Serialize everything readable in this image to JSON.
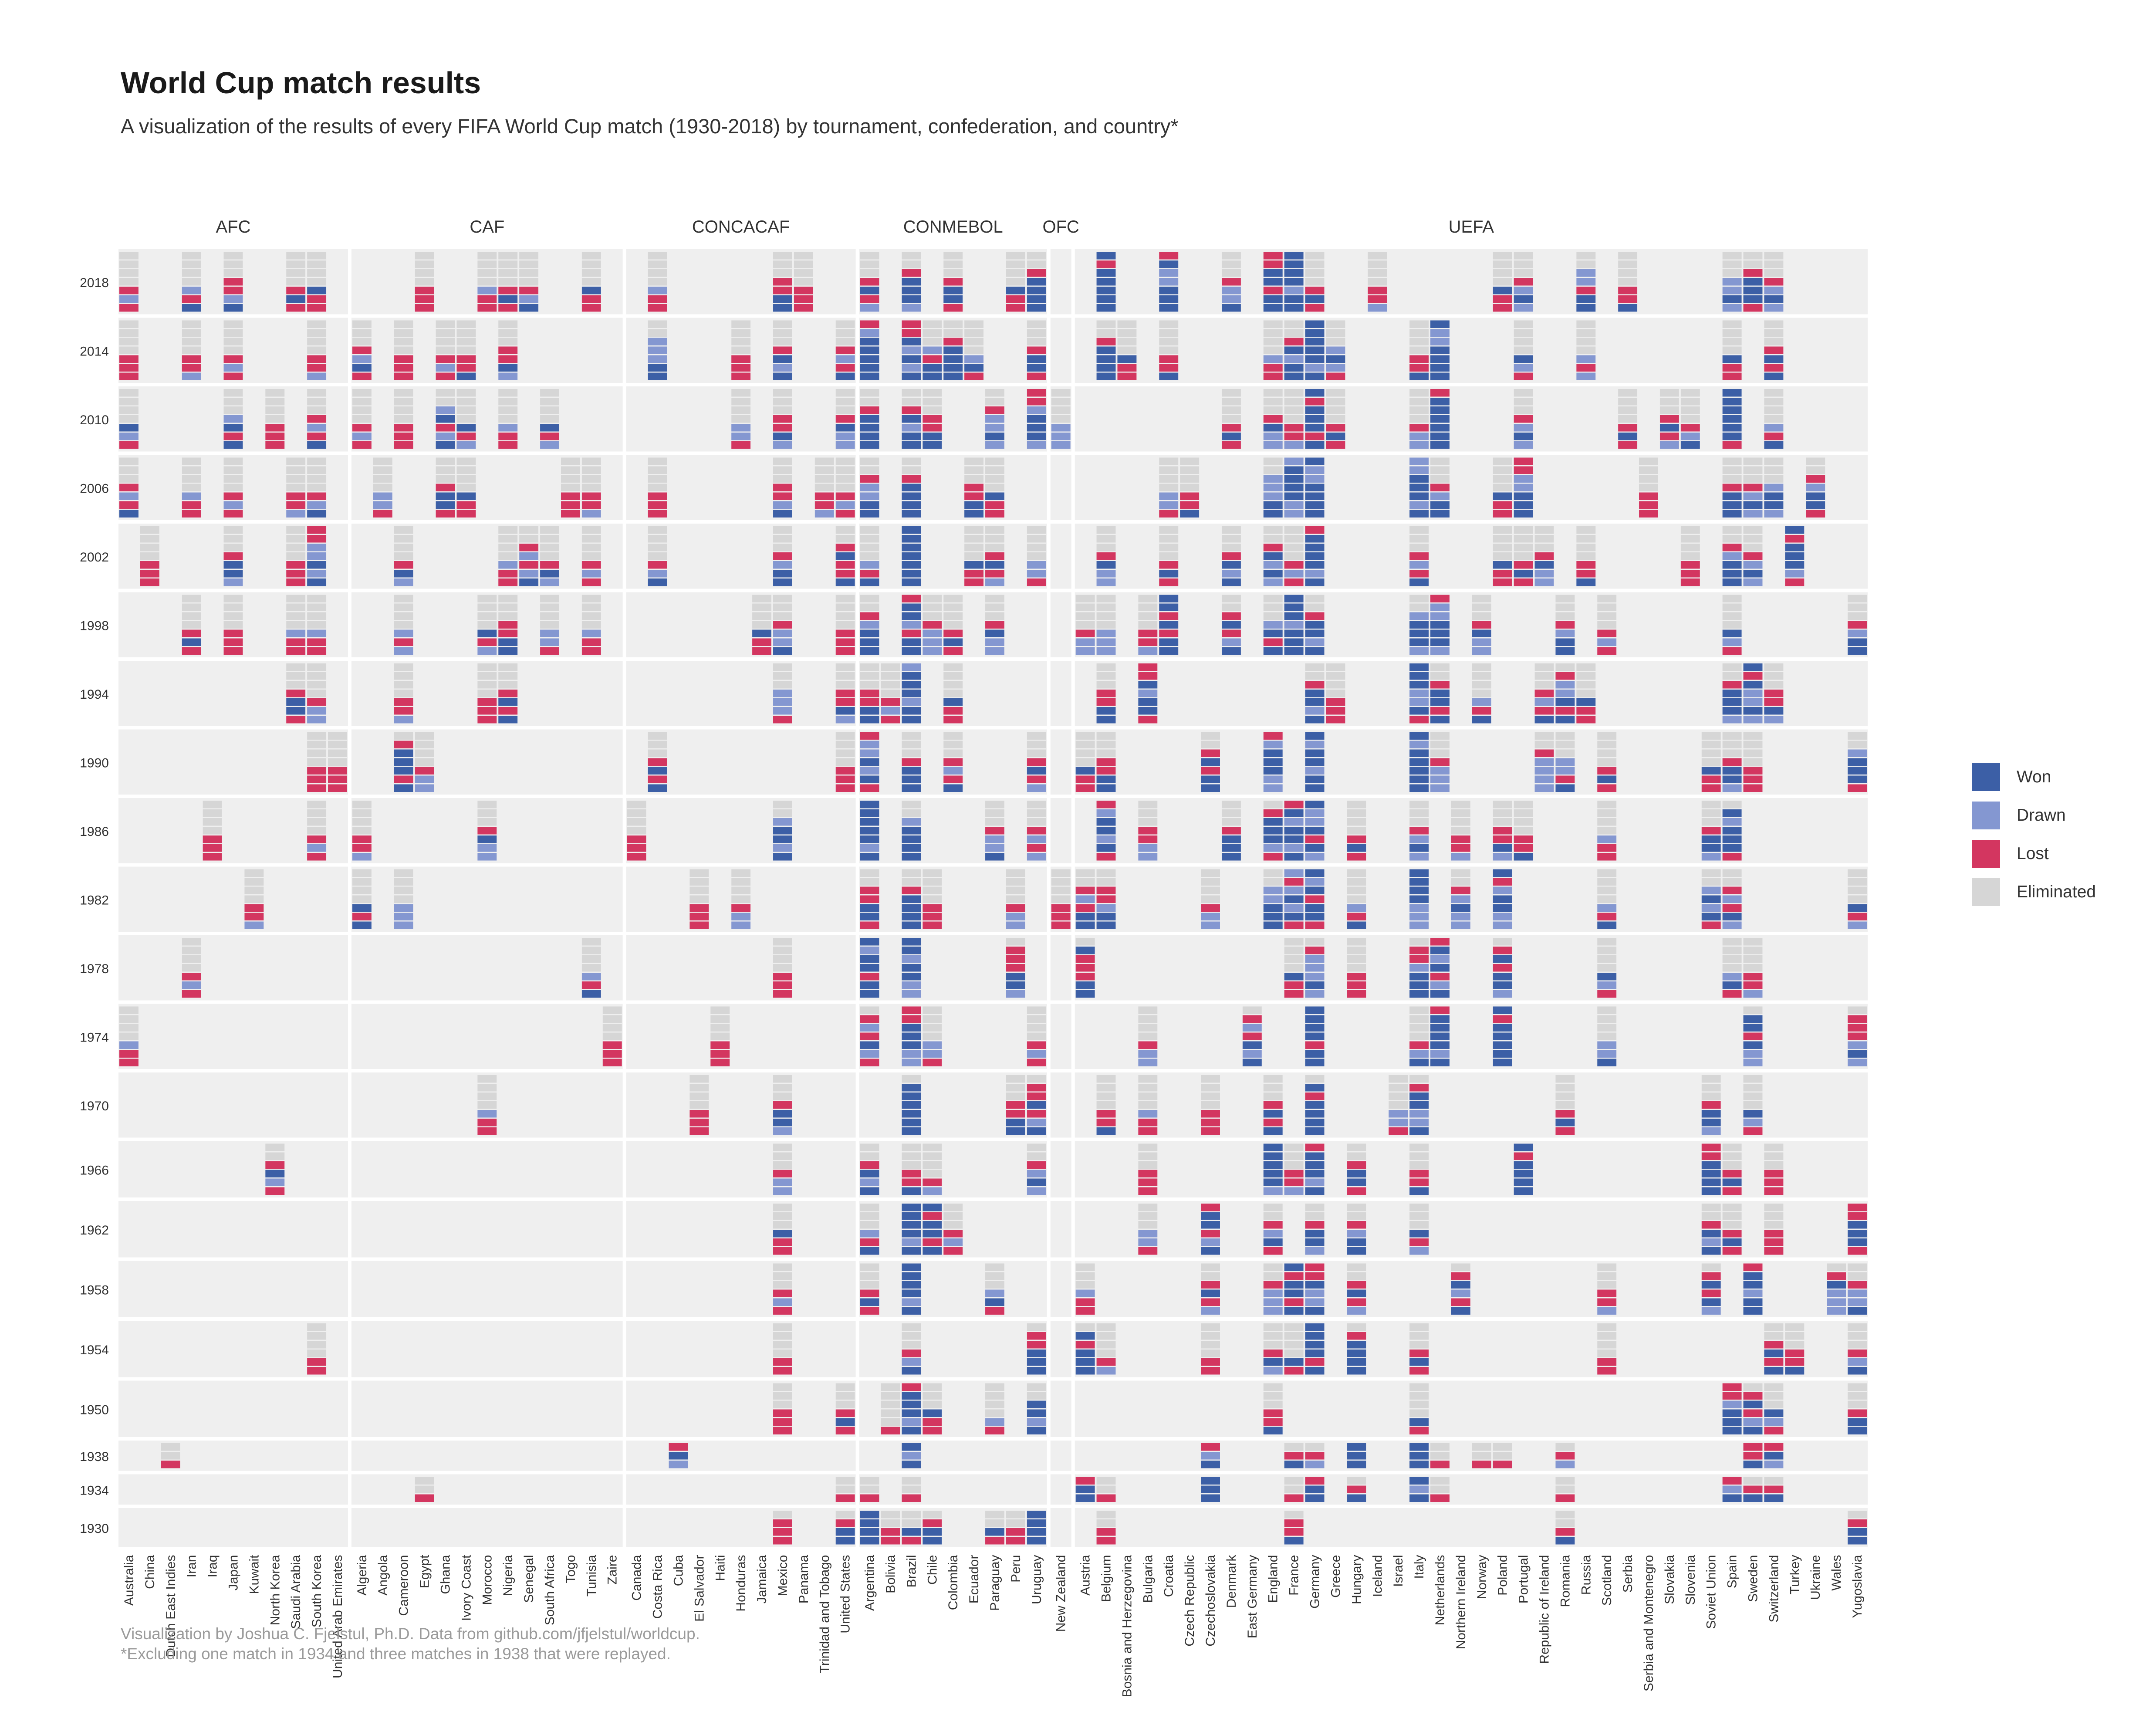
{
  "title": "World Cup match results",
  "subtitle": "A visualization of the results of every FIFA World Cup match (1930-2018) by tournament, confederation, and country*",
  "caption_line1": "Visualization by Joshua C. Fjelstul, Ph.D. Data from github.com/jfjelstul/worldcup.",
  "caption_line2": "*Excluding one match in 1934 and three matches in 1938 that were replayed.",
  "colors": {
    "won": "#3c5fa6",
    "drawn": "#8497d1",
    "lost": "#d33660",
    "eliminated": "#d6d6d6",
    "panel": "#efefef"
  },
  "legend": [
    {
      "key": "won",
      "label": "Won"
    },
    {
      "key": "drawn",
      "label": "Drawn"
    },
    {
      "key": "lost",
      "label": "Lost"
    },
    {
      "key": "eliminated",
      "label": "Eliminated"
    }
  ],
  "chart_data": {
    "type": "heatmap",
    "title": "World Cup match results",
    "facets_note": "Columns are grouped by confederation; each cell is a stack of match tiles (bottom = first match).",
    "years": [
      "2018",
      "2014",
      "2010",
      "2006",
      "2002",
      "1998",
      "1994",
      "1990",
      "1986",
      "1982",
      "1978",
      "1974",
      "1970",
      "1966",
      "1962",
      "1958",
      "1954",
      "1950",
      "1938",
      "1934",
      "1930"
    ],
    "slots": [
      7,
      7,
      7,
      7,
      7,
      7,
      7,
      7,
      7,
      7,
      7,
      7,
      7,
      6,
      6,
      6,
      6,
      6,
      3,
      3,
      4
    ],
    "confederations": [
      {
        "name": "AFC",
        "countries": [
          "Australia",
          "China",
          "Dutch East Indies",
          "Iran",
          "Iraq",
          "Japan",
          "Kuwait",
          "North Korea",
          "Saudi Arabia",
          "South Korea",
          "United Arab Emirates"
        ]
      },
      {
        "name": "CAF",
        "countries": [
          "Algeria",
          "Angola",
          "Cameroon",
          "Egypt",
          "Ghana",
          "Ivory Coast",
          "Morocco",
          "Nigeria",
          "Senegal",
          "South Africa",
          "Togo",
          "Tunisia",
          "Zaire"
        ]
      },
      {
        "name": "CONCACAF",
        "countries": [
          "Canada",
          "Costa Rica",
          "Cuba",
          "El Salvador",
          "Haiti",
          "Honduras",
          "Jamaica",
          "Mexico",
          "Panama",
          "Trinidad and Tobago",
          "United States"
        ]
      },
      {
        "name": "CONMEBOL",
        "countries": [
          "Argentina",
          "Bolivia",
          "Brazil",
          "Chile",
          "Colombia",
          "Ecuador",
          "Paraguay",
          "Peru",
          "Uruguay"
        ]
      },
      {
        "name": "OFC",
        "countries": [
          "New Zealand"
        ]
      },
      {
        "name": "UEFA",
        "countries": [
          "Austria",
          "Belgium",
          "Bosnia and Herzegovina",
          "Bulgaria",
          "Croatia",
          "Czech Republic",
          "Czechoslovakia",
          "Denmark",
          "East Germany",
          "England",
          "France",
          "Germany",
          "Greece",
          "Hungary",
          "Iceland",
          "Israel",
          "Italy",
          "Netherlands",
          "Northern Ireland",
          "Norway",
          "Poland",
          "Portugal",
          "Republic of Ireland",
          "Romania",
          "Russia",
          "Scotland",
          "Serbia",
          "Serbia and Montenegro",
          "Slovakia",
          "Slovenia",
          "Soviet Union",
          "Spain",
          "Sweden",
          "Switzerland",
          "Turkey",
          "Ukraine",
          "Wales",
          "Yugoslavia"
        ]
      }
    ],
    "results": {
      "2018": {
        "Australia": "LDL",
        "Iran": "WLD",
        "Japan": "WDLL",
        "Saudi Arabia": "LWL",
        "South Korea": "LLW",
        "Egypt": "LLL",
        "Morocco": "LLD",
        "Nigeria": "LWL",
        "Senegal": "WDL",
        "Tunisia": "LLW",
        "Costa Rica": "LLD",
        "Mexico": "WWLL",
        "Panama": "LLL",
        "Argentina": "DLWL",
        "Brazil": "DWWWL",
        "Colombia": "LWWL",
        "Peru": "LLW",
        "Uruguay": "WWWWL",
        "Belgium": "WWWWWLW",
        "Croatia": "WWWDDWL",
        "Denmark": "WDDL",
        "England": "WWLWWLL",
        "France": "WWDWWWW",
        "Germany": "LWL",
        "Iceland": "DLL",
        "Poland": "LLW",
        "Portugal": "DWDL",
        "Russia": "WWLDD",
        "Serbia": "WLL",
        "Spain": "DWDD",
        "Sweden": "LWWWL",
        "Switzerland": "DWDL"
      },
      "2014": {
        "Australia": "LLL",
        "Iran": "DLL",
        "Japan": "LDL",
        "South Korea": "DLL",
        "Algeria": "LWDL",
        "Cameroon": "LLL",
        "Ghana": "LDL",
        "Ivory Coast": "WLL",
        "Nigeria": "DWLL",
        "Costa Rica": "WWDDD",
        "Honduras": "LLL",
        "Mexico": "WDWL",
        "United States": "WLDL",
        "Argentina": "WWWWWDL",
        "Brazil": "WDWDWLL",
        "Chile": "WWLD",
        "Colombia": "WWWWL",
        "Ecuador": "LWD",
        "Uruguay": "LWWL",
        "Belgium": "WWWWL",
        "Bosnia and Herzegovina": "LLW",
        "Croatia": "WLL",
        "England": "LLD",
        "France": "WWDWL",
        "Germany": "WDWWWWW",
        "Greece": "LDWD",
        "Italy": "WLL",
        "Netherlands": "WWWWDDW",
        "Portugal": "LDW",
        "Russia": "DLD",
        "Spain": "LLW",
        "Switzerland": "WLWL"
      },
      "2010": {
        "Australia": "LDW",
        "Japan": "WLWD",
        "North Korea": "LLL",
        "South Korea": "WLDL",
        "Algeria": "LDL",
        "Cameroon": "LLL",
        "Ghana": "WDLWD",
        "Ivory Coast": "DLW",
        "Nigeria": "LLD",
        "South Africa": "DLW",
        "Honduras": "LDD",
        "Mexico": "DWLL",
        "United States": "DDWL",
        "Argentina": "WWWWL",
        "Brazil": "WWDWL",
        "Chile": "WWLL",
        "Paraguay": "DWDDL",
        "Uruguay": "DWWWDLL",
        "New Zealand": "DDD",
        "Denmark": "LWL",
        "England": "DDWL",
        "France": "DLL",
        "Germany": "WLWWWLW",
        "Greece": "LWL",
        "Italy": "DDL",
        "Netherlands": "WWWWWWL",
        "Portugal": "DWDL",
        "Serbia": "LWL",
        "Slovakia": "DLWL",
        "Slovenia": "WDL",
        "Spain": "LWWWWWW",
        "Switzerland": "WLD"
      },
      "2006": {
        "Australia": "WLDL",
        "Iran": "LLD",
        "Japan": "LDL",
        "Saudi Arabia": "DLL",
        "South Korea": "WDL",
        "Angola": "LDD",
        "Ghana": "LWWL",
        "Ivory Coast": "LLW",
        "Togo": "LLL",
        "Tunisia": "DLL",
        "Costa Rica": "LLL",
        "Mexico": "WDLL",
        "Trinidad and Tobago": "DLL",
        "United States": "LDL",
        "Argentina": "WWDDL",
        "Brazil": "WWWWL",
        "Ecuador": "WWLL",
        "Paraguay": "LLW",
        "Croatia": "LDD",
        "Czech Republic": "WLL",
        "England": "WWDDD",
        "France": "DDWWWWD",
        "Germany": "WWWWDDW",
        "Italy": "WDWWWDD",
        "Netherlands": "WWDL",
        "Poland": "LLW",
        "Portugal": "WWWDDLL",
        "Serbia and Montenegro": "LLL",
        "Spain": "WWWL",
        "Sweden": "DWDL",
        "Switzerland": "DWWD",
        "Ukraine": "LWWDL"
      },
      "2002": {
        "China": "LLL",
        "Japan": "DWWL",
        "Saudi Arabia": "LLL",
        "South Korea": "WDWDDLL",
        "Cameroon": "DWL",
        "Nigeria": "LLD",
        "Senegal": "WDLDL",
        "South Africa": "DWL",
        "Tunisia": "LDL",
        "Costa Rica": "WDL",
        "Mexico": "WWDL",
        "United States": "WLLWL",
        "Argentina": "WLD",
        "Brazil": "WWWWWWW",
        "Ecuador": "LLW",
        "Paraguay": "DLWL",
        "Uruguay": "LDD",
        "Belgium": "DDWL",
        "Croatia": "LWL",
        "Denmark": "WDWL",
        "England": "DWDWL",
        "France": "LDL",
        "Germany": "WDWWWWL",
        "Italy": "WLDL",
        "Poland": "LLW",
        "Portugal": "LWL",
        "Republic of Ireland": "DDWL",
        "Russia": "WLL",
        "Slovenia": "LLL",
        "Spain": "WWWDL",
        "Sweden": "DWDL",
        "Turkey": "LDWWWLW"
      },
      "1998": {
        "Iran": "LWL",
        "Japan": "LLL",
        "Saudi Arabia": "LLD",
        "South Korea": "LLD",
        "Cameroon": "DLD",
        "Morocco": "DLW",
        "Nigeria": "WWLL",
        "South Africa": "LDD",
        "Tunisia": "LLD",
        "Jamaica": "LLW",
        "Mexico": "WDDL",
        "United States": "LLL",
        "Argentina": "WWWDL",
        "Brazil": "WWLDWWL",
        "Chile": "DDDL",
        "Colombia": "LWL",
        "Paraguay": "DDWL",
        "Austria": "DDL",
        "Belgium": "DDD",
        "Bulgaria": "DLL",
        "Croatia": "WWLWLWW",
        "Denmark": "WDLWL",
        "England": "WLWD",
        "France": "WWWDWWW",
        "Germany": "WDWWL",
        "Italy": "DWWWD",
        "Netherlands": "DWWWDDL",
        "Norway": "DDWL",
        "Romania": "WWDL",
        "Scotland": "LDL",
        "Spain": "LDW",
        "Yugoslavia": "WWDL"
      },
      "1994": {
        "Saudi Arabia": "LWWL",
        "South Korea": "DDL",
        "Cameroon": "DLL",
        "Morocco": "LLL",
        "Nigeria": "WLWL",
        "Mexico": "LDDD",
        "United States": "DWLL",
        "Argentina": "WWLL",
        "Bolivia": "LDL",
        "Brazil": "WWDWWWDD",
        "Colombia": "LLW",
        "Belgium": "WWLL",
        "Bulgaria": "LWWDWLL",
        "Germany": "WDWWL",
        "Greece": "LLL",
        "Italy": "LWDDWWWD",
        "Netherlands": "WLWWL",
        "Norway": "WLD",
        "Republic of Ireland": "WLDL",
        "Romania": "WLWDDL",
        "Russia": "LLW",
        "Spain": "DWWWL",
        "Sweden": "DWDDWLW",
        "Switzerland": "DWLL"
      },
      "1990": {
        "South Korea": "LLL",
        "United Arab Emirates": "LLL",
        "Cameroon": "WLWWWL",
        "Egypt": "DDL",
        "Costa Rica": "WLWL",
        "United States": "LLL",
        "Argentina": "LWDWDDL",
        "Brazil": "WWWL",
        "Colombia": "WLDL",
        "Uruguay": "DLWL",
        "Austria": "LLW",
        "Belgium": "WWLL",
        "Czechoslovakia": "WWLWL",
        "England": "DDWWWDL",
        "Germany": "WWDWWDWW",
        "Italy": "WWWWWDW",
        "Netherlands": "DDDL",
        "Republic of Ireland": "DDDDL",
        "Romania": "WLDD",
        "Scotland": "LWL",
        "Soviet Union": "LLW",
        "Spain": "DWWL",
        "Sweden": "LLL",
        "Yugoslavia": "LWWWD"
      },
      "1986": {
        "Iraq": "LLL",
        "South Korea": "LDL",
        "Algeria": "DLL",
        "Morocco": "DDWL",
        "Canada": "LLL",
        "Mexico": "WDWWD",
        "Argentina": "WDWWWWW",
        "Brazil": "WWWWD",
        "Paraguay": "WDDL",
        "Uruguay": "DLDL",
        "Belgium": "LWDWWDLL",
        "Bulgaria": "DDLL",
        "Denmark": "WWWL",
        "England": "LDWWWL",
        "France": "WDWWDWLW",
        "Germany": "DWLWDDWL",
        "Hungary": "LWL",
        "Italy": "DWDL",
        "Northern Ireland": "DLL",
        "Poland": "DWLL",
        "Portugal": "WLL",
        "Scotland": "LLD",
        "Soviet Union": "DWWL",
        "Spain": "LWWWDW"
      },
      "1982": {
        "Kuwait": "DLL",
        "Algeria": "WLW",
        "Cameroon": "DDD",
        "El Salvador": "LLL",
        "Honduras": "DDL",
        "Argentina": "LWWLL",
        "Brazil": "WWWWL",
        "Chile": "LLL",
        "Peru": "DDL",
        "New Zealand": "LLL",
        "Austria": "WWLDL",
        "Belgium": "WWDLL",
        "Czechoslovakia": "DDL",
        "England": "WWWDD",
        "France": "LWDWDLDL",
        "Germany": "LWWLWDWDL",
        "Hungary": "WLD",
        "Italy": "DDDWWWW",
        "Northern Ireland": "DDWDL",
        "Poland": "DDWWDLW",
        "Scotland": "WLD",
        "Soviet Union": "LWDWD",
        "Spain": "DWLDL",
        "Yugoslavia": "DLW"
      },
      "1978": {
        "Iran": "LDL",
        "Tunisia": "WLD",
        "Mexico": "LLL",
        "Argentina": "WWLWWDWW",
        "Brazil": "DDWWDWW",
        "Peru": "DWWLLL",
        "Austria": "WWLLLW",
        "France": "LLW",
        "Germany": "DWDDDL",
        "Hungary": "LLL",
        "Italy": "WWWDLL",
        "Netherlands": "WDLWDWL",
        "Poland": "DWWLWL",
        "Scotland": "LDW",
        "Spain": "LWD",
        "Sweden": "DLL"
      },
      "1974": {
        "Australia": "LLD",
        "Zaire": "LLL",
        "Haiti": "LLL",
        "Argentina": "LDWLDL",
        "Brazil": "DDWWWLL",
        "Chile": "LDD",
        "Uruguay": "LDL",
        "Bulgaria": "DDL",
        "East Germany": "WDWLDL",
        "Germany": "WWLWWWW",
        "Italy": "WDL",
        "Netherlands": "WDWWWWL",
        "Poland": "WWWWWLW",
        "Scotland": "WDD",
        "Sweden": "DDWLWW",
        "Yugoslavia": "DWDLLL"
      },
      "1970": {
        "Morocco": "LLD",
        "El Salvador": "LLL",
        "Mexico": "DWWL",
        "Brazil": "WWWWWW",
        "Peru": "WWLL",
        "Uruguay": "WDLWLL",
        "Belgium": "WLL",
        "Bulgaria": "LLD",
        "Czechoslovakia": "LLL",
        "England": "WLWL",
        "Germany": "WWWWLW",
        "Israel": "LDD",
        "Italy": "WDDWWL",
        "Romania": "LWL",
        "Soviet Union": "DWWL",
        "Sweden": "LDW"
      },
      "1966": {
        "North Korea": "LDWL",
        "Mexico": "DDL",
        "Argentina": "WDWL",
        "Brazil": "WLL",
        "Chile": "DL",
        "Uruguay": "DWDL",
        "Bulgaria": "LLL",
        "England": "DWWWWW",
        "France": "DLL",
        "Germany": "WDWWWL",
        "Hungary": "LWWL",
        "Italy": "WLL",
        "Portugal": "WWWWLW",
        "Soviet Union": "WWWWLL",
        "Spain": "LWL",
        "Switzerland": "LLL"
      },
      "1962": {
        "Mexico": "LLW",
        "Argentina": "WLD",
        "Brazil": "WDWWWW",
        "Chile": "WLWWLW",
        "Colombia": "LDL",
        "Bulgaria": "LDD",
        "Czechoslovakia": "WDLWWL",
        "England": "LWDL",
        "Germany": "DWWL",
        "Hungary": "WWDL",
        "Italy": "DLW",
        "Soviet Union": "WDWL",
        "Spain": "LWL",
        "Switzerland": "LLL",
        "Yugoslavia": "LWWWLL"
      },
      "1958": {
        "Mexico": "LDL",
        "Argentina": "LWL",
        "Brazil": "WDWWWW",
        "Paraguay": "LWD",
        "Austria": "LLD",
        "Czechoslovakia": "DLWL",
        "England": "DDDL",
        "France": "WLWWLW",
        "Germany": "WDDWLL",
        "Hungary": "DLWL",
        "Northern Ireland": "WLDWL",
        "Scotland": "DLL",
        "Soviet Union": "DWLWL",
        "Sweden": "WWDWWL",
        "Wales": "DDDWL",
        "Yugoslavia": "WDDL"
      },
      "1954": {
        "South Korea": "LL",
        "Mexico": "LL",
        "Brazil": "WDL",
        "Uruguay": "WWWLL",
        "Austria": "WWWLW",
        "Belgium": "DL",
        "Czechoslovakia": "LL",
        "England": "DWL",
        "France": "LW",
        "Germany": "WLWWWW",
        "Hungary": "WWWWL",
        "Italy": "LWL",
        "Scotland": "LL",
        "Switzerland": "WLWL",
        "Turkey": "WLL",
        "Yugoslavia": "WDL"
      },
      "1950": {
        "Mexico": "LLL",
        "United States": "LWL",
        "Bolivia": "L",
        "Brazil": "WDWWWL",
        "Chile": "LLW",
        "Paraguay": "LD",
        "Uruguay": "WDWW",
        "England": "WLL",
        "Italy": "LW",
        "Spain": "WWWDLL",
        "Sweden": "WDLWL",
        "Switzerland": "LDW",
        "Yugoslavia": "WWL"
      },
      "1938": {
        "Dutch East Indies": "L",
        "Cuba": "DWL",
        "Brazil": "WDWL",
        "Czechoslovakia": "WDL",
        "France": "WL",
        "Germany": "DL",
        "Hungary": "WWWL",
        "Italy": "WWWW",
        "Netherlands": "L",
        "Norway": "L",
        "Poland": "L",
        "Romania": "DL",
        "Sweden": "WLL",
        "Switzerland": "DWL"
      },
      "1934": {
        "Egypt": "L",
        "United States": "L",
        "Argentina": "L",
        "Brazil": "L",
        "Austria": "WWLL",
        "Belgium": "L",
        "Czechoslovakia": "WWWL",
        "France": "L",
        "Germany": "WWLW",
        "Hungary": "WL",
        "Italy": "WDWWW",
        "Netherlands": "L",
        "Romania": "L",
        "Spain": "WDL",
        "Sweden": "WL",
        "Switzerland": "WL"
      },
      "1930": {
        "Mexico": "LLL",
        "United States": "WWL",
        "Argentina": "WWWWL",
        "Bolivia": "LL",
        "Brazil": "LW",
        "Chile": "WWL",
        "Paraguay": "LW",
        "Peru": "LL",
        "Uruguay": "WWWW",
        "Belgium": "LL",
        "France": "WLL",
        "Romania": "WL",
        "Yugoslavia": "WWL"
      }
    }
  }
}
